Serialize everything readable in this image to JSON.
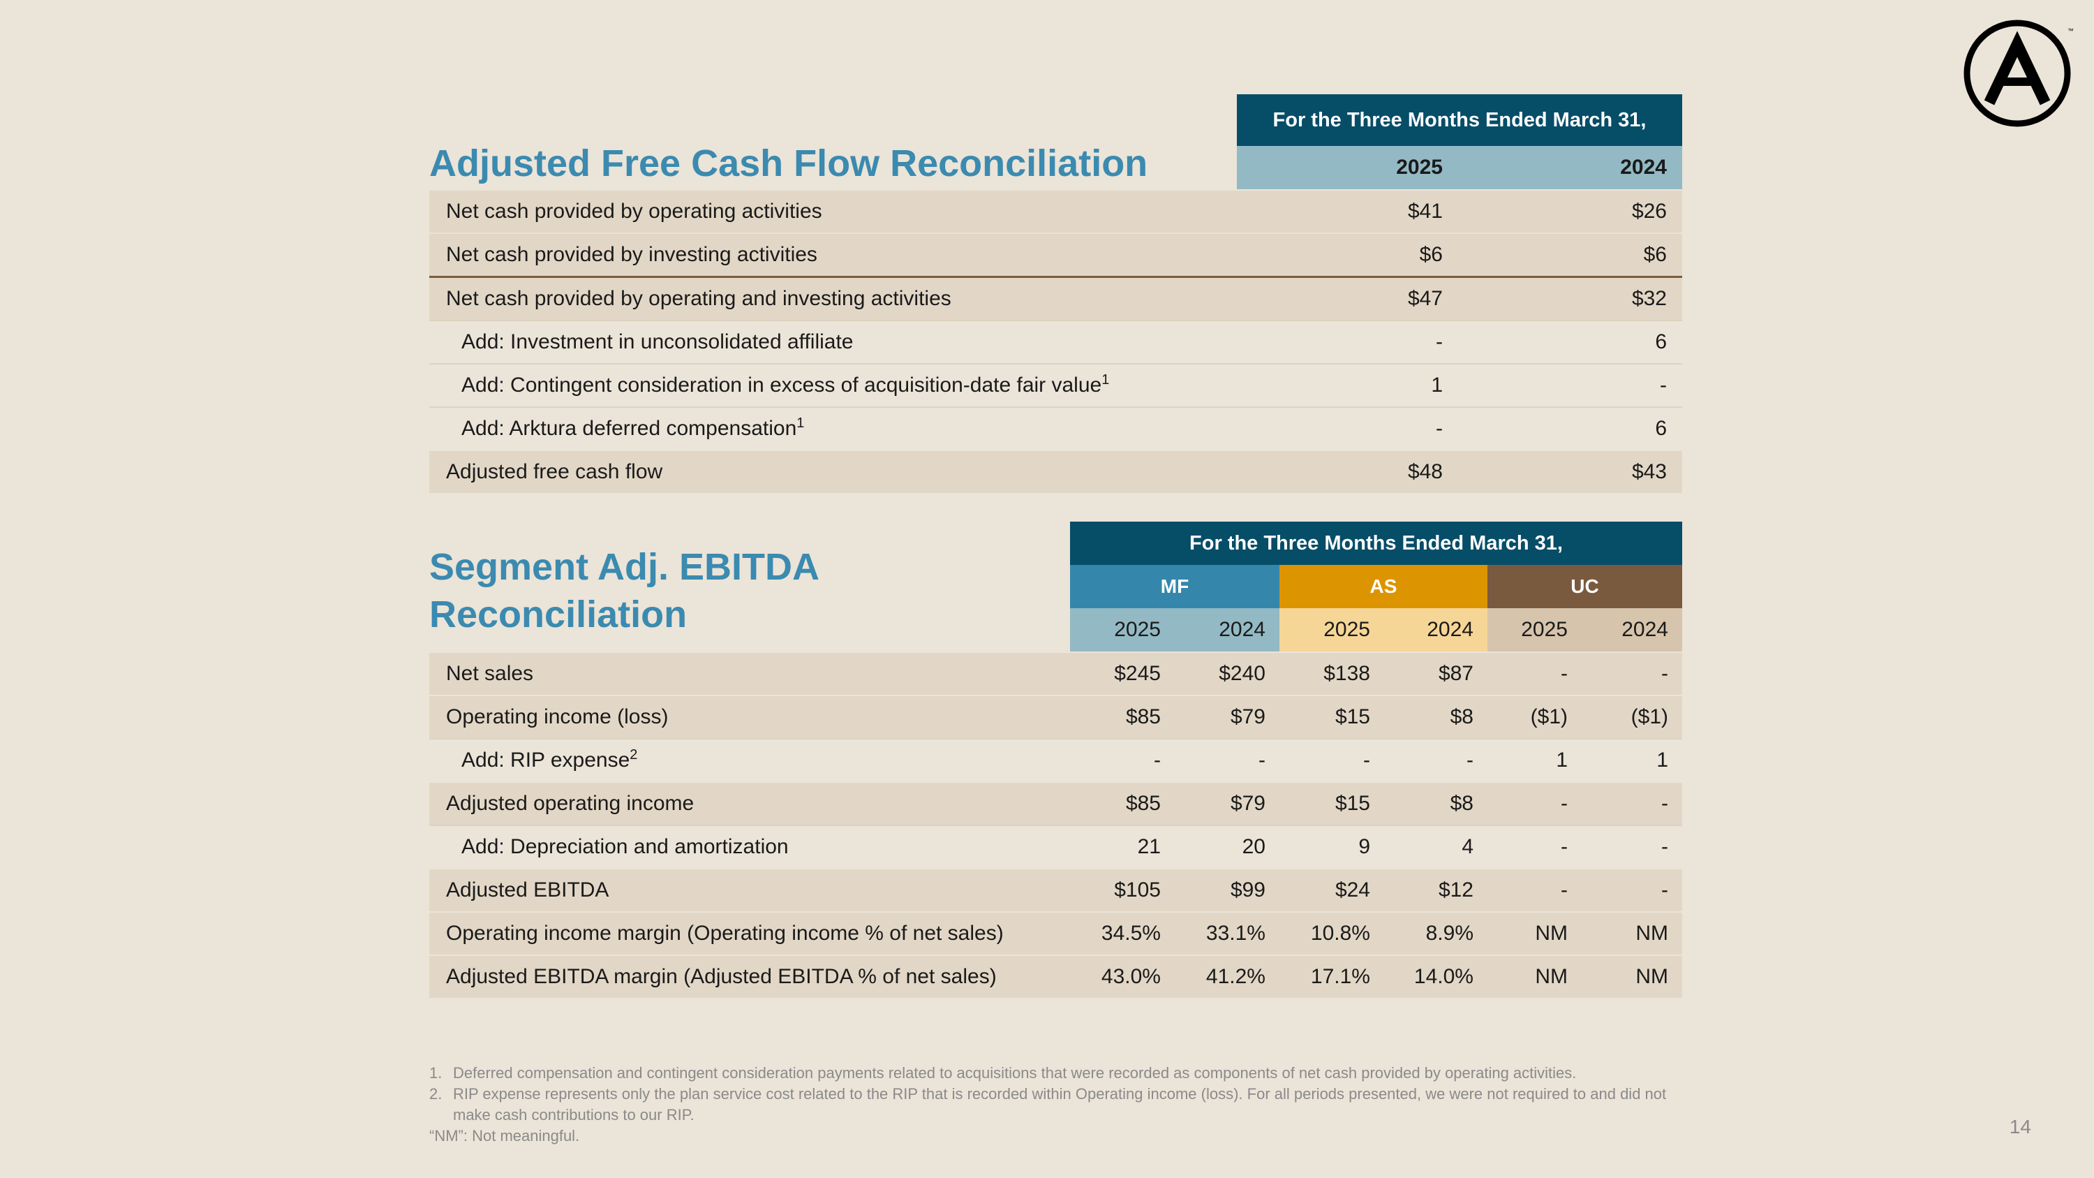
{
  "page_number": "14",
  "logo": {
    "letter": "A",
    "tm": "™"
  },
  "fcf": {
    "title": "Adjusted Free Cash Flow Reconciliation",
    "period_header": "For the Three Months Ended March 31,",
    "years": [
      "2025",
      "2024"
    ],
    "rows": [
      {
        "label": "Net cash provided by operating activities",
        "sup": "",
        "values": [
          "$41",
          "$26"
        ]
      },
      {
        "label": "Net cash provided by investing activities",
        "sup": "",
        "values": [
          "$6",
          "$6"
        ]
      },
      {
        "label": "Net cash provided by operating and investing activities",
        "sup": "",
        "values": [
          "$47",
          "$32"
        ]
      },
      {
        "label": "Add: Investment in unconsolidated affiliate",
        "sup": "",
        "values": [
          "-",
          "6"
        ]
      },
      {
        "label": "Add: Contingent consideration in excess of acquisition-date fair value",
        "sup": "1",
        "values": [
          "1",
          "-"
        ]
      },
      {
        "label": "Add: Arktura deferred compensation",
        "sup": "1",
        "values": [
          "-",
          "6"
        ]
      },
      {
        "label": "Adjusted free cash flow",
        "sup": "",
        "values": [
          "$48",
          "$43"
        ]
      }
    ]
  },
  "segment": {
    "title_line1": "Segment Adj. EBITDA",
    "title_line2": "Reconciliation",
    "period_header": "For the Three Months Ended March 31,",
    "segments": [
      "MF",
      "AS",
      "UC"
    ],
    "years": [
      "2025",
      "2024",
      "2025",
      "2024",
      "2025",
      "2024"
    ],
    "rows": [
      {
        "label": "Net sales",
        "sup": "",
        "values": [
          "$245",
          "$240",
          "$138",
          "$87",
          "-",
          "-"
        ]
      },
      {
        "label": "Operating income (loss)",
        "sup": "",
        "values": [
          "$85",
          "$79",
          "$15",
          "$8",
          "($1)",
          "($1)"
        ]
      },
      {
        "label": "Add: RIP expense",
        "sup": "2",
        "values": [
          "-",
          "-",
          "-",
          "-",
          "1",
          "1"
        ]
      },
      {
        "label": "Adjusted operating income",
        "sup": "",
        "values": [
          "$85",
          "$79",
          "$15",
          "$8",
          "-",
          "-"
        ]
      },
      {
        "label": "Add: Depreciation and amortization",
        "sup": "",
        "values": [
          "21",
          "20",
          "9",
          "4",
          "-",
          "-"
        ]
      },
      {
        "label": "Adjusted EBITDA",
        "sup": "",
        "values": [
          "$105",
          "$99",
          "$24",
          "$12",
          "-",
          "-"
        ]
      },
      {
        "label": "Operating income margin (Operating income % of net sales)",
        "sup": "",
        "values": [
          "34.5%",
          "33.1%",
          "10.8%",
          "8.9%",
          "NM",
          "NM"
        ]
      },
      {
        "label": "Adjusted EBITDA margin (Adjusted EBITDA % of net sales)",
        "sup": "",
        "values": [
          "43.0%",
          "41.2%",
          "17.1%",
          "14.0%",
          "NM",
          "NM"
        ]
      }
    ]
  },
  "footnotes": [
    {
      "num": "1.",
      "text": "Deferred compensation and contingent consideration payments related to acquisitions that were recorded as components of net cash provided by operating activities."
    },
    {
      "num": "2.",
      "text": "RIP expense represents only the plan service cost related to the RIP that is recorded within Operating income (loss). For all periods presented, we were not required to and did not make cash contributions to our RIP."
    },
    {
      "num": "",
      "text": "“NM”: Not meaningful."
    }
  ]
}
